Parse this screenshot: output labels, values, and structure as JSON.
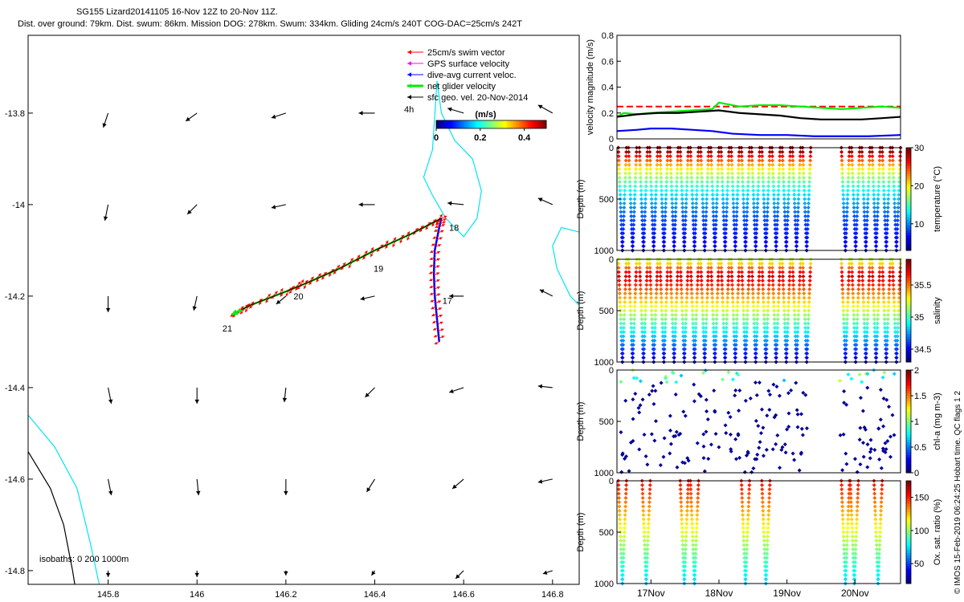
{
  "title": {
    "line1": "SG155 Lizard20141105 16-Nov 12Z to 20-Nov 11Z.",
    "line2": "Dist. over ground: 79km. Dist. swum: 86km. Mission DOG: 278km. Swum: 334km. Gliding 24cm/s 240T COG-DAC=25cm/s 242T"
  },
  "credit": "© IMOS 15-Feb-2019 06:24:25 Hobart time. QC flags 1  2",
  "colors": {
    "swim_vector": "#ff0000",
    "gps_surface": "#ff00ff",
    "dive_avg_current": "#0000ff",
    "net_glider": "#00ee00",
    "sfc_geo": "#000000",
    "isobath_0": "#000000",
    "isobath_200": "#00e5ee"
  },
  "chart_data": [
    {
      "type": "scatter",
      "name": "map",
      "x_ticks": [
        "145.8",
        "146",
        "146.2",
        "146.4",
        "146.6",
        "146.8"
      ],
      "y_ticks": [
        "-13.8",
        "-14",
        "-14.2",
        "-14.4",
        "-14.6",
        "-14.8"
      ],
      "xlim": [
        145.62,
        146.86
      ],
      "ylim": [
        -14.83,
        -13.63
      ],
      "legend": [
        {
          "label": "25cm/s swim vector",
          "color": "#ff0000"
        },
        {
          "label": "GPS surface velocity",
          "color": "#ff00ff"
        },
        {
          "label": "dive-avg current veloc.",
          "color": "#0000ff"
        },
        {
          "label": "net glider velocity",
          "color": "#00ee00"
        },
        {
          "label": "sfc geo. vel. 20-Nov-2014",
          "color": "#000000"
        }
      ],
      "legend_note": "4h",
      "colorbar": {
        "label": "(m/s)",
        "ticks": [
          "0",
          "0.2",
          "0.4"
        ],
        "range": [
          0,
          0.5
        ]
      },
      "isobaths_label": "isobaths: 0   200   1000m",
      "day_markers": [
        {
          "label": "17",
          "x": 146.545,
          "y": -14.21
        },
        {
          "label": "18",
          "x": 146.56,
          "y": -14.05
        },
        {
          "label": "19",
          "x": 146.39,
          "y": -14.14
        },
        {
          "label": "20",
          "x": 146.21,
          "y": -14.2
        },
        {
          "label": "21",
          "x": 146.05,
          "y": -14.27
        }
      ],
      "track_south": [
        [
          146.545,
          -14.3
        ],
        [
          146.54,
          -14.25
        ],
        [
          146.535,
          -14.2
        ],
        [
          146.533,
          -14.15
        ],
        [
          146.535,
          -14.1
        ],
        [
          146.545,
          -14.05
        ],
        [
          146.55,
          -14.03
        ]
      ],
      "track_west": [
        [
          146.55,
          -14.03
        ],
        [
          146.48,
          -14.065
        ],
        [
          146.4,
          -14.1
        ],
        [
          146.32,
          -14.14
        ],
        [
          146.25,
          -14.17
        ],
        [
          146.2,
          -14.19
        ],
        [
          146.12,
          -14.22
        ],
        [
          146.08,
          -14.24
        ]
      ],
      "geo_arrows": [
        {
          "x": 145.8,
          "y": -13.8,
          "u": -0.3,
          "v": -0.9
        },
        {
          "x": 146.0,
          "y": -13.8,
          "u": -0.7,
          "v": -0.5
        },
        {
          "x": 146.2,
          "y": -13.8,
          "u": -0.9,
          "v": -0.3
        },
        {
          "x": 146.4,
          "y": -13.8,
          "u": -1.0,
          "v": 0.0
        },
        {
          "x": 146.6,
          "y": -13.8,
          "u": -1.0,
          "v": 0.3
        },
        {
          "x": 146.8,
          "y": -13.8,
          "u": -0.9,
          "v": 0.5
        },
        {
          "x": 145.8,
          "y": -14.0,
          "u": -0.2,
          "v": -1.0
        },
        {
          "x": 146.0,
          "y": -14.0,
          "u": -0.6,
          "v": -0.6
        },
        {
          "x": 146.2,
          "y": -14.0,
          "u": -0.9,
          "v": -0.2
        },
        {
          "x": 146.4,
          "y": -14.0,
          "u": -1.0,
          "v": 0.0
        },
        {
          "x": 146.6,
          "y": -14.0,
          "u": -1.0,
          "v": 0.1
        },
        {
          "x": 146.8,
          "y": -14.0,
          "u": -0.9,
          "v": 0.4
        },
        {
          "x": 145.8,
          "y": -14.2,
          "u": 0.0,
          "v": -1.0
        },
        {
          "x": 146.0,
          "y": -14.2,
          "u": -0.2,
          "v": -0.9
        },
        {
          "x": 146.2,
          "y": -14.2,
          "u": -0.6,
          "v": -0.5
        },
        {
          "x": 146.4,
          "y": -14.2,
          "u": -0.9,
          "v": -0.2
        },
        {
          "x": 146.6,
          "y": -14.2,
          "u": -0.9,
          "v": 0.0
        },
        {
          "x": 146.8,
          "y": -14.2,
          "u": -0.8,
          "v": 0.4
        },
        {
          "x": 145.8,
          "y": -14.4,
          "u": 0.2,
          "v": -1.0
        },
        {
          "x": 146.0,
          "y": -14.4,
          "u": 0.0,
          "v": -1.0
        },
        {
          "x": 146.2,
          "y": -14.4,
          "u": -0.1,
          "v": -0.9
        },
        {
          "x": 146.4,
          "y": -14.4,
          "u": -0.6,
          "v": -0.6
        },
        {
          "x": 146.6,
          "y": -14.4,
          "u": -0.9,
          "v": -0.3
        },
        {
          "x": 146.8,
          "y": -14.4,
          "u": -0.9,
          "v": 0.1
        },
        {
          "x": 145.8,
          "y": -14.6,
          "u": 0.2,
          "v": -1.0
        },
        {
          "x": 146.0,
          "y": -14.6,
          "u": 0.1,
          "v": -1.0
        },
        {
          "x": 146.2,
          "y": -14.6,
          "u": 0.0,
          "v": -1.0
        },
        {
          "x": 146.4,
          "y": -14.6,
          "u": -0.5,
          "v": -0.8
        },
        {
          "x": 146.6,
          "y": -14.6,
          "u": -0.7,
          "v": -0.6
        },
        {
          "x": 146.8,
          "y": -14.6,
          "u": -0.9,
          "v": -0.2
        },
        {
          "x": 145.8,
          "y": -14.8,
          "u": 0.0,
          "v": -0.4
        },
        {
          "x": 146.0,
          "y": -14.8,
          "u": 0.0,
          "v": -0.4
        },
        {
          "x": 146.2,
          "y": -14.8,
          "u": 0.0,
          "v": -0.3
        },
        {
          "x": 146.4,
          "y": -14.8,
          "u": -0.2,
          "v": -0.3
        },
        {
          "x": 146.6,
          "y": -14.8,
          "u": -0.5,
          "v": -0.5
        },
        {
          "x": 146.8,
          "y": -14.8,
          "u": -0.6,
          "v": -0.2
        }
      ],
      "isobath_0": [
        [
          145.62,
          -14.54
        ],
        [
          145.67,
          -14.62
        ],
        [
          145.7,
          -14.7
        ],
        [
          145.72,
          -14.8
        ],
        [
          145.725,
          -14.83
        ]
      ],
      "isobath_200": [
        [
          145.62,
          -14.46
        ],
        [
          145.68,
          -14.53
        ],
        [
          145.73,
          -14.62
        ],
        [
          145.76,
          -14.74
        ],
        [
          145.78,
          -14.83
        ]
      ],
      "isobath_right_a": [
        [
          146.54,
          -13.73
        ],
        [
          146.55,
          -13.8
        ],
        [
          146.58,
          -13.86
        ],
        [
          146.62,
          -13.9
        ],
        [
          146.64,
          -13.97
        ],
        [
          146.63,
          -14.03
        ],
        [
          146.6,
          -14.07
        ],
        [
          146.56,
          -14.03
        ],
        [
          146.53,
          -13.98
        ],
        [
          146.51,
          -13.94
        ],
        [
          146.53,
          -13.88
        ],
        [
          146.54,
          -13.73
        ]
      ],
      "isobath_right_b": [
        [
          146.86,
          -14.06
        ],
        [
          146.82,
          -14.05
        ],
        [
          146.8,
          -14.09
        ],
        [
          146.81,
          -14.14
        ],
        [
          146.84,
          -14.2
        ],
        [
          146.86,
          -14.22
        ]
      ]
    },
    {
      "type": "line",
      "name": "velocity",
      "ylabel": "velocity magnitude (m/s)",
      "ylim": [
        0,
        0.8
      ],
      "y_ticks": [
        "0",
        "0.2",
        "0.4",
        "0.6",
        "0.8"
      ],
      "xlim": [
        16.5,
        20.67
      ],
      "series": [
        {
          "color": "#ff0000",
          "x": [
            16.5,
            20.67
          ],
          "values": [
            0.25,
            0.25
          ]
        },
        {
          "color": "#00ee00",
          "x": [
            16.5,
            16.6,
            16.8,
            17.0,
            17.3,
            17.6,
            17.9,
            18.0,
            18.3,
            18.6,
            18.9,
            19.2,
            19.5,
            19.8,
            20.1,
            20.4,
            20.67
          ],
          "values": [
            0.17,
            0.2,
            0.19,
            0.2,
            0.21,
            0.22,
            0.23,
            0.28,
            0.25,
            0.26,
            0.26,
            0.25,
            0.24,
            0.23,
            0.24,
            0.25,
            0.24
          ]
        },
        {
          "color": "#000000",
          "x": [
            16.5,
            16.8,
            17.1,
            17.4,
            17.7,
            18.0,
            18.3,
            18.6,
            18.9,
            19.2,
            19.5,
            19.8,
            20.1,
            20.4,
            20.67
          ],
          "values": [
            0.17,
            0.19,
            0.2,
            0.2,
            0.21,
            0.22,
            0.2,
            0.19,
            0.18,
            0.16,
            0.15,
            0.15,
            0.15,
            0.16,
            0.17
          ]
        },
        {
          "color": "#0000ff",
          "x": [
            16.5,
            16.8,
            17.0,
            17.3,
            17.6,
            17.9,
            18.2,
            18.6,
            19.0,
            19.4,
            19.8,
            20.2,
            20.67
          ],
          "values": [
            0.06,
            0.07,
            0.08,
            0.08,
            0.07,
            0.06,
            0.04,
            0.03,
            0.03,
            0.02,
            0.02,
            0.02,
            0.03
          ]
        }
      ]
    },
    {
      "type": "scatter",
      "name": "temperature",
      "ylabel": "Depth (m)",
      "clabel": "temperature (°C)",
      "c_ticks": [
        "10",
        "20",
        "30"
      ],
      "clim": [
        3,
        30
      ],
      "ylim": [
        0,
        1000
      ],
      "y_ticks": [
        "0",
        "500",
        "1000"
      ],
      "dive_starts": [
        16.52,
        16.67,
        16.83,
        16.98,
        17.13,
        17.28,
        17.43,
        17.58,
        17.73,
        17.88,
        18.03,
        18.18,
        18.33,
        18.48,
        18.63,
        18.78,
        18.93,
        19.08,
        19.23,
        19.8,
        19.95,
        20.1,
        20.25,
        20.4,
        20.55
      ]
    },
    {
      "type": "scatter",
      "name": "salinity",
      "ylabel": "Depth (m)",
      "clabel": "salinity",
      "c_ticks": [
        "34.5",
        "35",
        "35.5"
      ],
      "clim": [
        34.3,
        35.9
      ],
      "ylim": [
        0,
        1000
      ],
      "y_ticks": [
        "0",
        "500",
        "1000"
      ]
    },
    {
      "type": "scatter",
      "name": "chlorophyll",
      "ylabel": "Depth (m)",
      "clabel": "chl-a (mg m-3)",
      "c_ticks": [
        "0",
        "0.5",
        "1",
        "1.5",
        "2"
      ],
      "clim": [
        0,
        2
      ],
      "ylim": [
        0,
        1000
      ],
      "y_ticks": [
        "0",
        "500",
        "1000"
      ]
    },
    {
      "type": "scatter",
      "name": "oxygen",
      "ylabel": "Depth (m)",
      "clabel": "Ox. sat. ratio (%)",
      "c_ticks": [
        "50",
        "100",
        "150"
      ],
      "clim": [
        20,
        175
      ],
      "ylim": [
        0,
        1000
      ],
      "y_ticks": [
        "0",
        "500",
        "1000"
      ],
      "dive_starts": [
        16.52,
        16.87,
        17.43,
        17.58,
        18.33,
        18.63,
        19.8,
        19.93,
        20.28
      ],
      "x_ticks": [
        "17Nov",
        "18Nov",
        "19Nov",
        "20Nov"
      ]
    }
  ]
}
